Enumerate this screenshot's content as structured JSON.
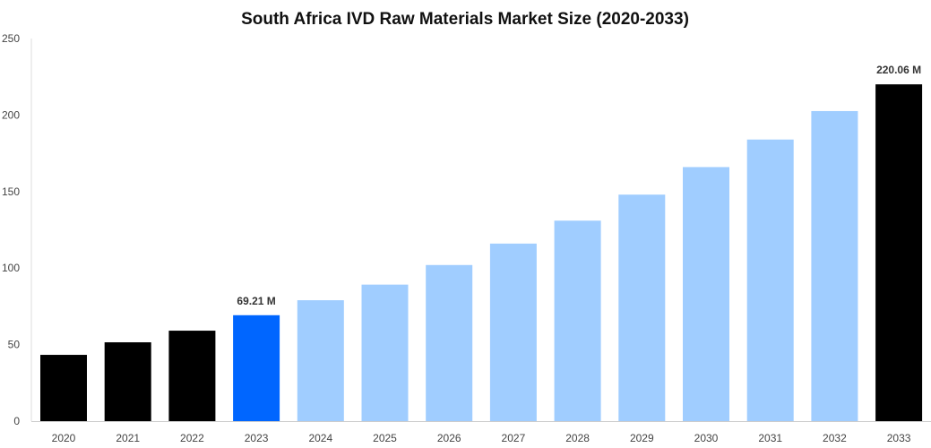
{
  "chart_data": {
    "type": "bar",
    "title": "South Africa IVD Raw Materials Market Size (2020-2033)",
    "xlabel": "",
    "ylabel": "",
    "ylim": [
      0,
      250
    ],
    "yticks": [
      0,
      50,
      100,
      150,
      200,
      250
    ],
    "grid": false,
    "categories": [
      "2020",
      "2021",
      "2022",
      "2023",
      "2024",
      "2025",
      "2026",
      "2027",
      "2028",
      "2029",
      "2030",
      "2031",
      "2032",
      "2033"
    ],
    "values": [
      43.3,
      51.5,
      59.1,
      69.21,
      79.0,
      89.2,
      102.0,
      116.0,
      131.0,
      148.0,
      166.0,
      184.0,
      202.6,
      220.06
    ],
    "colors": [
      "#000000",
      "#000000",
      "#000000",
      "#0066ff",
      "#a0cdff",
      "#a0cdff",
      "#a0cdff",
      "#a0cdff",
      "#a0cdff",
      "#a0cdff",
      "#a0cdff",
      "#a0cdff",
      "#a0cdff",
      "#000000"
    ],
    "data_labels": [
      {
        "category": "2023",
        "text": "69.21 M"
      },
      {
        "category": "2033",
        "text": "220.06 M"
      }
    ]
  }
}
